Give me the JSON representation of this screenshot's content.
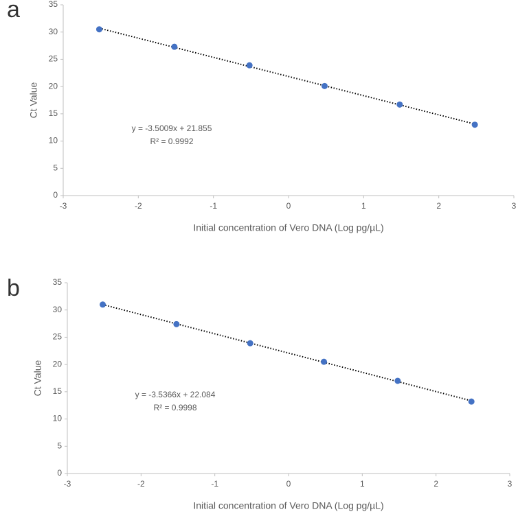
{
  "chart_data": [
    {
      "type": "scatter",
      "panel_label": "a",
      "x_label": "Initial concentration of Vero DNA (Log pg/µL)",
      "y_label": "Ct Value",
      "annotations": [
        "y = -3.5009x + 21.855",
        "R² = 0.9992"
      ],
      "series": [
        {
          "name": "Ct",
          "color": "#4472c4",
          "x": [
            -2.52,
            -1.52,
            -0.52,
            0.48,
            1.48,
            2.48
          ],
          "values": [
            30.5,
            27.3,
            23.9,
            20.1,
            16.7,
            13.0
          ]
        }
      ],
      "trendline": true,
      "grid": false,
      "xlim": [
        -3,
        3
      ],
      "xticks": [
        -3,
        -2,
        -1,
        0,
        1,
        2,
        3
      ],
      "ylim": [
        0,
        35
      ],
      "yticks": [
        0,
        5,
        10,
        15,
        20,
        25,
        30,
        35
      ]
    },
    {
      "type": "scatter",
      "panel_label": "b",
      "x_label": "Initial concentration of Vero DNA (Log pg/µL)",
      "y_label": "Ct Value",
      "annotations": [
        "y = -3.5366x + 22.084",
        "R² = 0.9998"
      ],
      "series": [
        {
          "name": "Ct",
          "color": "#4472c4",
          "x": [
            -2.52,
            -1.52,
            -0.52,
            0.48,
            1.48,
            2.48
          ],
          "values": [
            31.0,
            27.4,
            23.9,
            20.5,
            17.0,
            13.2
          ]
        }
      ],
      "trendline": true,
      "grid": false,
      "xlim": [
        -3,
        3
      ],
      "xticks": [
        -3,
        -2,
        -1,
        0,
        1,
        2,
        3
      ],
      "ylim": [
        0,
        35
      ],
      "yticks": [
        0,
        5,
        10,
        15,
        20,
        25,
        30,
        35
      ]
    }
  ]
}
